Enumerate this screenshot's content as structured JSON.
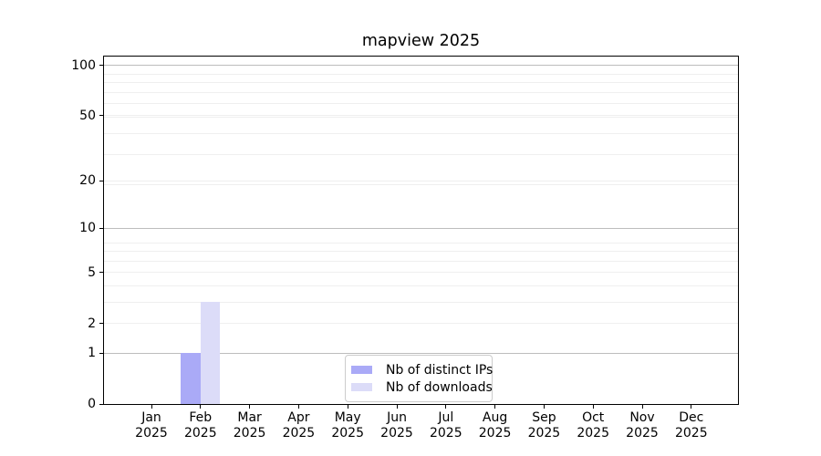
{
  "chart_data": {
    "type": "bar",
    "title": "mapview 2025",
    "categories": [
      "Jan",
      "Feb",
      "Mar",
      "Apr",
      "May",
      "Jun",
      "Jul",
      "Aug",
      "Sep",
      "Oct",
      "Nov",
      "Dec"
    ],
    "x_year_label": "2025",
    "series": [
      {
        "name": "Nb of distinct IPs",
        "color": "#aaaaf7",
        "values": [
          0,
          1,
          0,
          0,
          0,
          0,
          0,
          0,
          0,
          0,
          0,
          0
        ]
      },
      {
        "name": "Nb of downloads",
        "color": "#dcdcf8",
        "values": [
          0,
          3,
          0,
          0,
          0,
          0,
          0,
          0,
          0,
          0,
          0,
          0
        ]
      }
    ],
    "yaxis": {
      "scale": "log1p",
      "ymin": 0,
      "ymax": 113,
      "tick_values": [
        0,
        1,
        2,
        5,
        10,
        20,
        50,
        100
      ],
      "tick_labels": [
        "0",
        "1",
        "2",
        "5",
        "10",
        "20",
        "50",
        "100"
      ],
      "major_grid_values": [
        1,
        10,
        100
      ],
      "minor_grid_values": [
        2,
        3,
        4,
        5,
        6,
        7,
        8,
        19,
        20,
        29,
        39,
        49,
        50,
        59,
        69,
        79,
        89
      ]
    },
    "legend": {
      "position": "lower center"
    },
    "grid": true
  }
}
